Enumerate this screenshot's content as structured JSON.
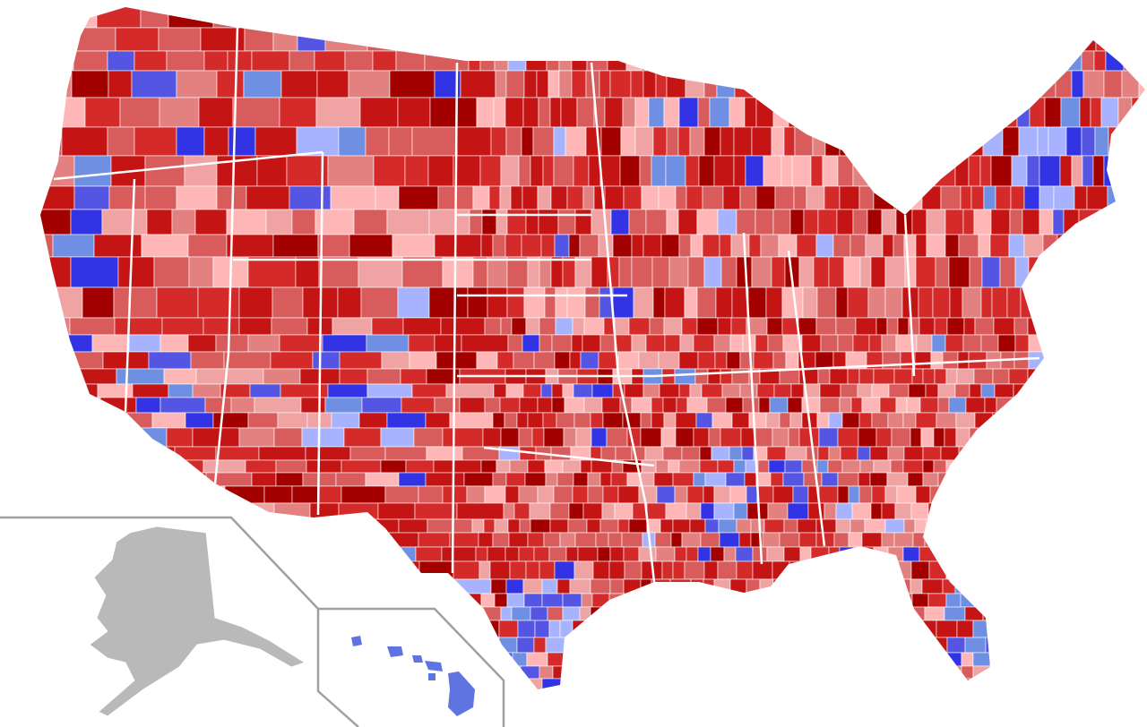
{
  "map": {
    "background": "#ffffff",
    "county_border_color": "#ffffff",
    "inset_border_color": "#a0a0a0",
    "alaska_fill": "#b9b9b9",
    "hawaii_fill": "#5f74e0",
    "red_shades": [
      "#a30000",
      "#c41414",
      "#d42a2a",
      "#d95c5c",
      "#e38080",
      "#f0a3a3",
      "#ffb6b6"
    ],
    "blue_shades": [
      "#3333e6",
      "#5555e3",
      "#6f8fe3",
      "#a7b3ff"
    ]
  }
}
